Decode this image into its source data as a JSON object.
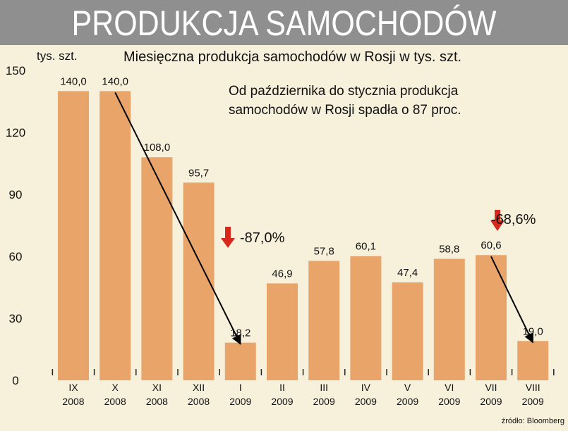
{
  "banner": {
    "title": "PRODUKCJA SAMOCHODÓW"
  },
  "chart_data": {
    "type": "bar",
    "title": "Miesięczna produkcja samochodów w Rosji w tys. szt.",
    "ylabel": "tys. szt.",
    "ylim": [
      0,
      150
    ],
    "yticks": [
      0,
      30,
      60,
      90,
      120,
      150
    ],
    "categories": [
      {
        "month": "IX",
        "year": "2008"
      },
      {
        "month": "X",
        "year": "2008"
      },
      {
        "month": "XI",
        "year": "2008"
      },
      {
        "month": "XII",
        "year": "2008"
      },
      {
        "month": "I",
        "year": "2009"
      },
      {
        "month": "II",
        "year": "2009"
      },
      {
        "month": "III",
        "year": "2009"
      },
      {
        "month": "IV",
        "year": "2009"
      },
      {
        "month": "V",
        "year": "2009"
      },
      {
        "month": "VI",
        "year": "2009"
      },
      {
        "month": "VII",
        "year": "2009"
      },
      {
        "month": "VIII",
        "year": "2009"
      }
    ],
    "values": [
      140.0,
      140.0,
      108.0,
      95.7,
      18.2,
      46.9,
      57.8,
      60.1,
      47.4,
      58.8,
      60.6,
      19.0
    ],
    "value_labels": [
      "140,0",
      "140,0",
      "108,0",
      "95,7",
      "18,2",
      "46,9",
      "57,8",
      "60,1",
      "47,4",
      "58,8",
      "60,6",
      "19,0"
    ],
    "bar_color": "#e9a46a",
    "annotations": {
      "note_line1": "Od października do stycznia produkcja",
      "note_line2": "samochodów w Rosji spadła o 87 proc.",
      "drop1_label": "-87,0%",
      "drop2_label": "-68,6%",
      "drop_arrow_color": "#d8281c",
      "trend1": {
        "from_index": 1,
        "to_index": 4
      },
      "trend2": {
        "from_index": 10,
        "to_index": 11
      }
    },
    "source": "źródło: Bloomberg",
    "grid": false,
    "legend": "none"
  }
}
